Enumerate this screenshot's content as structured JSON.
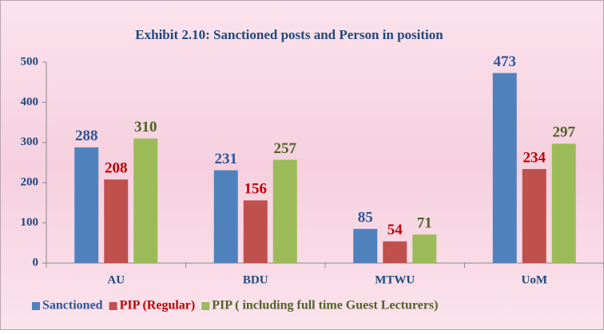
{
  "chart_data": {
    "type": "bar",
    "title": "Exhibit 2.10: Sanctioned posts and Person in position",
    "categories": [
      "AU",
      "BDU",
      "MTWU",
      "UoM"
    ],
    "series": [
      {
        "name": "Sanctioned",
        "color": "#4f81bd",
        "label_color": "#2f5597",
        "values": [
          288,
          231,
          85,
          473
        ]
      },
      {
        "name": "PIP (Regular)",
        "color": "#c0504d",
        "label_color": "#c00000",
        "values": [
          208,
          156,
          54,
          234
        ]
      },
      {
        "name": "PIP ( including full time Guest Lecturers)",
        "color": "#9bbb59",
        "label_color": "#4f6228",
        "values": [
          310,
          257,
          71,
          297
        ]
      }
    ],
    "ylim": [
      0,
      500
    ],
    "yticks": [
      0,
      100,
      200,
      300,
      400,
      500
    ],
    "legend": "bottom"
  }
}
